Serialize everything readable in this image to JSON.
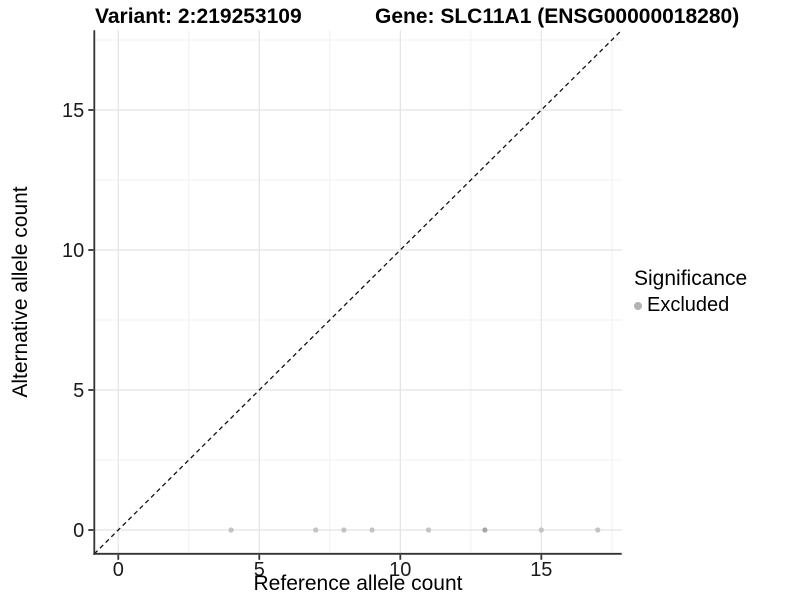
{
  "titles": {
    "left": "Variant: 2:219253109",
    "right": "Gene: SLC11A1 (ENSG00000018280)"
  },
  "legend": {
    "title": "Significance",
    "items": [
      {
        "label": "Excluded",
        "color": "#b3b3b3"
      }
    ]
  },
  "chart_data": {
    "type": "scatter",
    "xlabel": "Reference allele count",
    "ylabel": "Alternative allele count",
    "xlim": [
      -0.85,
      17.85
    ],
    "ylim": [
      -0.85,
      17.85
    ],
    "x_ticks": [
      0,
      5,
      10,
      15
    ],
    "y_ticks": [
      0,
      5,
      10,
      15
    ],
    "x_minor_ticks": [
      2.5,
      7.5,
      12.5,
      17.5
    ],
    "y_minor_ticks": [
      2.5,
      7.5,
      12.5,
      17.5
    ],
    "grid": true,
    "legend_position": "right",
    "series": [
      {
        "name": "Excluded",
        "points": [
          {
            "x": 4,
            "y": 0,
            "shade": "light"
          },
          {
            "x": 7,
            "y": 0,
            "shade": "light"
          },
          {
            "x": 8,
            "y": 0,
            "shade": "light"
          },
          {
            "x": 9,
            "y": 0,
            "shade": "light"
          },
          {
            "x": 11,
            "y": 0,
            "shade": "light"
          },
          {
            "x": 13,
            "y": 0,
            "shade": "dark"
          },
          {
            "x": 15,
            "y": 0,
            "shade": "light"
          },
          {
            "x": 17,
            "y": 0,
            "shade": "light"
          }
        ]
      }
    ],
    "reference_line": {
      "type": "identity",
      "style": "dashed",
      "from": [
        -0.85,
        -0.85
      ],
      "to": [
        17.85,
        17.85
      ]
    },
    "colors": {
      "point_light": "#c3c3c3",
      "point_dark": "#a5a5a5",
      "grid_major": "#e4e4e4",
      "grid_minor": "#f1f1f1",
      "axis_line": "#333333",
      "tick_mark": "#333333",
      "tick_label": "#1a1a1a",
      "reference_line": "#111111",
      "background": "#ffffff"
    }
  }
}
